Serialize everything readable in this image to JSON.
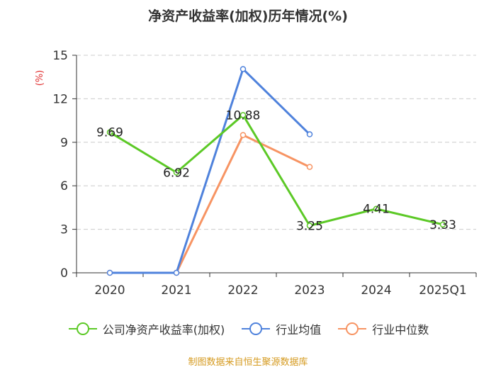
{
  "chart_data": {
    "type": "line",
    "title": "净资产收益率(加权)历年情况(%)",
    "ylabel": "(%)",
    "categories": [
      "2020",
      "2021",
      "2022",
      "2023",
      "2024",
      "2025Q1"
    ],
    "ylim": [
      0,
      15
    ],
    "yticks": [
      0,
      3,
      6,
      9,
      12,
      15
    ],
    "grid": true,
    "legend_position": "bottom",
    "series": [
      {
        "name": "公司净资产收益率(加权)",
        "color": "#5cc926",
        "values": [
          9.69,
          6.92,
          10.88,
          3.25,
          4.41,
          3.33
        ],
        "data_labels": [
          "9.69",
          "6.92",
          "10.88",
          "3.25",
          "4.41",
          "3.33"
        ]
      },
      {
        "name": "行业均值",
        "color": "#4f82dc",
        "values": [
          0,
          0,
          14.05,
          9.55,
          null,
          null
        ]
      },
      {
        "name": "行业中位数",
        "color": "#f79463",
        "values": [
          0,
          0,
          9.5,
          7.3,
          null,
          null
        ]
      }
    ]
  },
  "source": "制图数据来自恒生聚源数据库"
}
